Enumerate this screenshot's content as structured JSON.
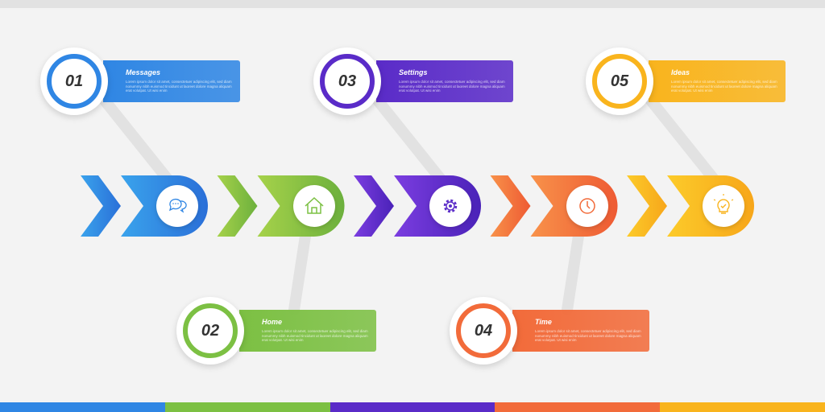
{
  "colors": {
    "blue": "#2f86e4",
    "green": "#7cc043",
    "purple": "#5a2bc8",
    "orange": "#f26b3a",
    "yellow": "#f9b41d"
  },
  "steps": [
    {
      "number": "01",
      "title": "Messages",
      "desc": "Lorem ipsum dolor sit amet, consectetuer adipiscing elit, sed diam nonummy nibh euismod tincidunt ut laoreet dolore magna aliquam erat volutpat. Ut wisi enim",
      "icon": "chat-bubbles-icon"
    },
    {
      "number": "02",
      "title": "Home",
      "desc": "Lorem ipsum dolor sit amet, consectetuer adipiscing elit, sed diam nonummy nibh euismod tincidunt ut laoreet dolore magna aliquam erat volutpat. Ut wisi enim",
      "icon": "house-icon"
    },
    {
      "number": "03",
      "title": "Settings",
      "desc": "Lorem ipsum dolor sit amet, consectetuer adipiscing elit, sed diam nonummy nibh euismod tincidunt ut laoreet dolore magna aliquam erat volutpat. Ut wisi enim",
      "icon": "gear-icon"
    },
    {
      "number": "04",
      "title": "Time",
      "desc": "Lorem ipsum dolor sit amet, consectetuer adipiscing elit, sed diam nonummy nibh euismod tincidunt ut laoreet dolore magna aliquam erat volutpat. Ut wisi enim",
      "icon": "clock-icon"
    },
    {
      "number": "05",
      "title": "Ideas",
      "desc": "Lorem ipsum dolor sit amet, consectetuer adipiscing elit, sed diam nonummy nibh euismod tincidunt ut laoreet dolore magna aliquam erat volutpat. Ut wisi enim",
      "icon": "lightbulb-icon"
    }
  ]
}
